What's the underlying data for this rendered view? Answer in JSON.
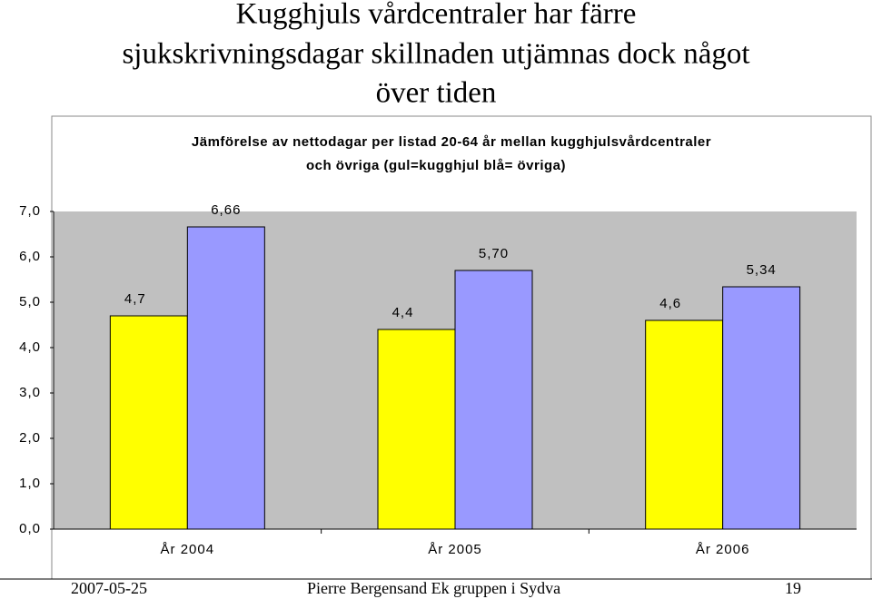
{
  "slide": {
    "title_lines": [
      "Kugghjuls vårdcentraler har färre",
      "sjukskrivningsdagar skillnaden utjämnas dock något",
      "över tiden"
    ],
    "footer": {
      "date": "2007-05-25",
      "author": "Pierre Bergensand Ek gruppen i Sydva",
      "page": "19"
    }
  },
  "chart_data": {
    "type": "bar",
    "title_lines": [
      "Jämförelse av nettodagar per listad 20-64 år mellan kugghjulsvårdcentraler",
      "och övriga (gul=kugghjul blå= övriga)"
    ],
    "categories": [
      "År 2004",
      "År 2005",
      "År 2006"
    ],
    "series": [
      {
        "color": "#ffff00",
        "values": [
          4.7,
          4.4,
          4.6
        ],
        "value_labels": [
          "4,7",
          "4,4",
          "4,6"
        ]
      },
      {
        "color": "#9999ff",
        "values": [
          6.66,
          5.7,
          5.34
        ],
        "value_labels": [
          "6,66",
          "5,70",
          "5,34"
        ]
      }
    ],
    "ylim": [
      0,
      7
    ],
    "yticks": [
      {
        "value": 0,
        "label": "0,0"
      },
      {
        "value": 1,
        "label": "1,0"
      },
      {
        "value": 2,
        "label": "2,0"
      },
      {
        "value": 3,
        "label": "3,0"
      },
      {
        "value": 4,
        "label": "4,0"
      },
      {
        "value": 5,
        "label": "5,0"
      },
      {
        "value": 6,
        "label": "6,0"
      },
      {
        "value": 7,
        "label": "7,0"
      }
    ],
    "plot_background": "#c0c0c0",
    "grid": false
  }
}
